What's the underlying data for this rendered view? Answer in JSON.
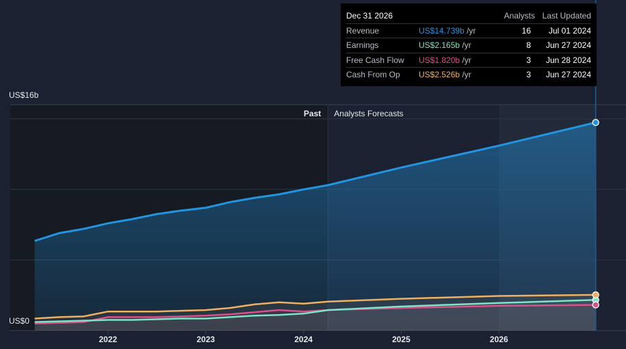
{
  "chart_data": {
    "type": "line",
    "x": [
      2021.25,
      2021.5,
      2021.75,
      2022,
      2022.25,
      2022.5,
      2022.75,
      2023,
      2023.25,
      2023.5,
      2023.75,
      2024,
      2024.25,
      2025,
      2026,
      2026.99
    ],
    "series": [
      {
        "name": "Revenue",
        "color": "#2394df",
        "values": [
          6.35,
          6.9,
          7.2,
          7.6,
          7.9,
          8.25,
          8.5,
          8.7,
          9.1,
          9.4,
          9.65,
          10.0,
          10.3,
          11.55,
          13.1,
          14.739
        ]
      },
      {
        "name": "Earnings",
        "color": "#7fe3c8",
        "values": [
          0.6,
          0.65,
          0.7,
          0.75,
          0.75,
          0.8,
          0.85,
          0.85,
          0.95,
          1.05,
          1.1,
          1.2,
          1.45,
          1.7,
          1.95,
          2.165
        ]
      },
      {
        "name": "Free Cash Flow",
        "color": "#d9508a",
        "values": [
          0.5,
          0.55,
          0.6,
          0.95,
          0.95,
          0.95,
          1.0,
          1.05,
          1.15,
          1.3,
          1.45,
          1.35,
          1.45,
          1.6,
          1.75,
          1.82
        ]
      },
      {
        "name": "Cash From Op",
        "color": "#f0b060",
        "values": [
          0.85,
          0.95,
          1.0,
          1.35,
          1.35,
          1.35,
          1.4,
          1.45,
          1.6,
          1.85,
          2.0,
          1.9,
          2.05,
          2.25,
          2.45,
          2.526
        ]
      }
    ],
    "xlim": [
      2021,
      2027.3
    ],
    "xticks": [
      2022,
      2023,
      2024,
      2025,
      2026
    ],
    "ylim": [
      0,
      16
    ],
    "yticks": [
      {
        "value": 0,
        "label": "US$0"
      },
      {
        "value": 16,
        "label": "US$16b"
      }
    ],
    "grid_lines": [
      5,
      10,
      15
    ],
    "forecast_start": 2024.25,
    "highlight_start": 2026,
    "past_label": "Past",
    "forecast_label": "Analysts Forecasts",
    "tooltip": {
      "date": "Dec 31 2026",
      "analysts_header": "Analysts",
      "updated_header": "Last Updated",
      "rows": [
        {
          "name": "Revenue",
          "value": "US$14.739b",
          "unit": "/yr",
          "analysts": 16,
          "updated": "Jul 01 2024"
        },
        {
          "name": "Earnings",
          "value": "US$2.165b",
          "unit": "/yr",
          "analysts": 8,
          "updated": "Jun 27 2024"
        },
        {
          "name": "Free Cash Flow",
          "value": "US$1.820b",
          "unit": "/yr",
          "analysts": 3,
          "updated": "Jun 28 2024"
        },
        {
          "name": "Cash From Op",
          "value": "US$2.526b",
          "unit": "/yr",
          "analysts": 3,
          "updated": "Jun 27 2024"
        }
      ]
    }
  }
}
